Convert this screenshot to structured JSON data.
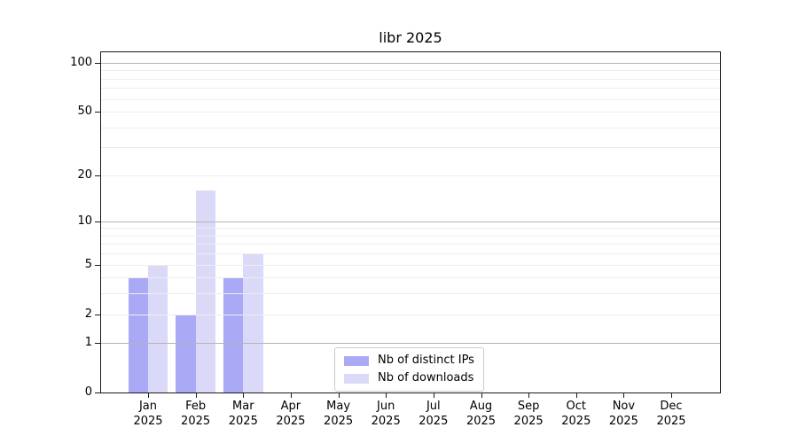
{
  "chart_data": {
    "type": "bar",
    "title": "libr 2025",
    "categories": [
      "Jan 2025",
      "Feb 2025",
      "Mar 2025",
      "Apr 2025",
      "May 2025",
      "Jun 2025",
      "Jul 2025",
      "Aug 2025",
      "Sep 2025",
      "Oct 2025",
      "Nov 2025",
      "Dec 2025"
    ],
    "series": [
      {
        "name": "Nb of distinct IPs",
        "color": "#a9a9f6",
        "values": [
          4,
          2,
          4,
          0,
          0,
          0,
          0,
          0,
          0,
          0,
          0,
          0
        ]
      },
      {
        "name": "Nb of downloads",
        "color": "#dadaf8",
        "values": [
          5,
          16,
          6,
          0,
          0,
          0,
          0,
          0,
          0,
          0,
          0,
          0
        ]
      }
    ],
    "xlabel": "",
    "ylabel": "",
    "y_scale": "log1p",
    "ylim": [
      0,
      100
    ],
    "y_ticks": [
      0,
      1,
      2,
      5,
      10,
      20,
      50,
      100
    ],
    "y_major_gridlines": [
      1,
      10,
      100
    ],
    "y_minor_gridlines": [
      2,
      3,
      4,
      5,
      6,
      7,
      8,
      9,
      20,
      30,
      40,
      50,
      60,
      70,
      80,
      90
    ],
    "grid": "on",
    "legend_position": "lower center (inside plot)"
  },
  "colors": {
    "background": "#ffffff",
    "spine": "#1a1a1a",
    "text": "#000000",
    "major_grid": "#b4b4b4",
    "minor_grid": "#ededed",
    "legend_border": "#cbcbcb",
    "ips_bar": "#a9a9f6",
    "downloads_bar": "#dadaf8"
  }
}
